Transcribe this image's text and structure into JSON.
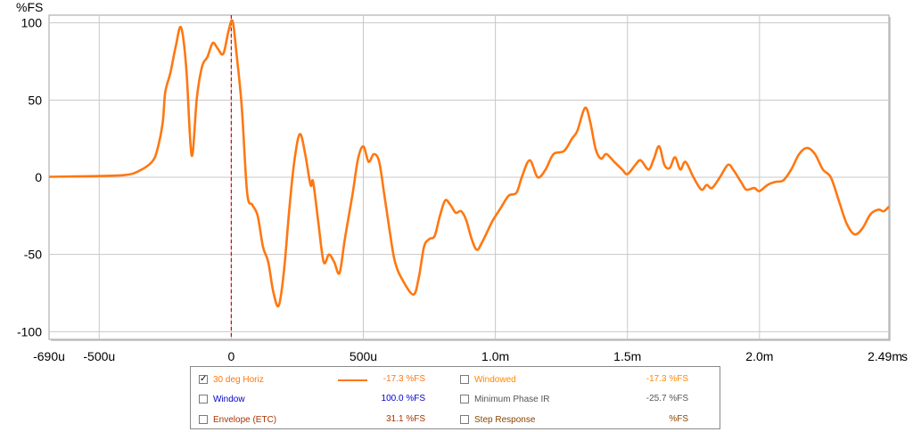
{
  "chart_data": {
    "type": "line",
    "title": "",
    "xlabel": "",
    "ylabel": "%FS",
    "x_unit": "s",
    "xlim": [
      -0.00069,
      0.00249
    ],
    "ylim": [
      -105,
      105
    ],
    "grid": true,
    "x_ticks": [
      {
        "value": -0.00069,
        "label": "-690u"
      },
      {
        "value": -0.0005,
        "label": "-500u"
      },
      {
        "value": 0,
        "label": "0"
      },
      {
        "value": 0.0005,
        "label": "500u"
      },
      {
        "value": 0.001,
        "label": "1.0m"
      },
      {
        "value": 0.0015,
        "label": "1.5m"
      },
      {
        "value": 0.002,
        "label": "2.0m"
      },
      {
        "value": 0.00249,
        "label": "2.49m"
      }
    ],
    "y_ticks": [
      100,
      50,
      0,
      -50,
      -100
    ],
    "marker_x": 0,
    "series": [
      {
        "name": "30 deg Horiz",
        "color": "#ff7711",
        "points": [
          [
            -0.00069,
            0.3
          ],
          [
            -0.0006,
            0.5
          ],
          [
            -0.0005,
            0.8
          ],
          [
            -0.0004,
            1.5
          ],
          [
            -0.00035,
            4
          ],
          [
            -0.0003,
            10
          ],
          [
            -0.00028,
            18
          ],
          [
            -0.00026,
            35
          ],
          [
            -0.00025,
            55
          ],
          [
            -0.00023,
            68
          ],
          [
            -0.00021,
            85
          ],
          [
            -0.00019,
            97
          ],
          [
            -0.00017,
            70
          ],
          [
            -0.00015,
            14
          ],
          [
            -0.00013,
            52
          ],
          [
            -0.00011,
            72
          ],
          [
            -9e-05,
            78
          ],
          [
            -7e-05,
            87
          ],
          [
            -5e-05,
            83
          ],
          [
            -3e-05,
            80
          ],
          [
            -1e-05,
            95
          ],
          [
            5e-06,
            101
          ],
          [
            2e-05,
            80
          ],
          [
            4e-05,
            45
          ],
          [
            6e-05,
            -10
          ],
          [
            8e-05,
            -18
          ],
          [
            0.0001,
            -25
          ],
          [
            0.00012,
            -45
          ],
          [
            0.00014,
            -55
          ],
          [
            0.00016,
            -75
          ],
          [
            0.00018,
            -83
          ],
          [
            0.0002,
            -60
          ],
          [
            0.00022,
            -20
          ],
          [
            0.00024,
            12
          ],
          [
            0.00026,
            28
          ],
          [
            0.00028,
            15
          ],
          [
            0.0003,
            -5
          ],
          [
            0.00031,
            -3
          ],
          [
            0.00033,
            -30
          ],
          [
            0.00035,
            -55
          ],
          [
            0.00037,
            -50
          ],
          [
            0.00039,
            -55
          ],
          [
            0.00041,
            -62
          ],
          [
            0.00043,
            -40
          ],
          [
            0.00046,
            -10
          ],
          [
            0.00048,
            12
          ],
          [
            0.0005,
            20
          ],
          [
            0.00052,
            10
          ],
          [
            0.00054,
            15
          ],
          [
            0.00056,
            10
          ],
          [
            0.00058,
            -12
          ],
          [
            0.0006,
            -35
          ],
          [
            0.00062,
            -55
          ],
          [
            0.00065,
            -67
          ],
          [
            0.00069,
            -76
          ],
          [
            0.00071,
            -65
          ],
          [
            0.00073,
            -45
          ],
          [
            0.00075,
            -40
          ],
          [
            0.00077,
            -38
          ],
          [
            0.00079,
            -25
          ],
          [
            0.00081,
            -15
          ],
          [
            0.00083,
            -18
          ],
          [
            0.00085,
            -23
          ],
          [
            0.00087,
            -22
          ],
          [
            0.00089,
            -28
          ],
          [
            0.00091,
            -40
          ],
          [
            0.00093,
            -47
          ],
          [
            0.00095,
            -42
          ],
          [
            0.00097,
            -35
          ],
          [
            0.00099,
            -28
          ],
          [
            0.00102,
            -20
          ],
          [
            0.00105,
            -12
          ],
          [
            0.00108,
            -10
          ],
          [
            0.0011,
            0
          ],
          [
            0.00113,
            11
          ],
          [
            0.00116,
            0
          ],
          [
            0.00119,
            5
          ],
          [
            0.00122,
            15
          ],
          [
            0.00126,
            17
          ],
          [
            0.00129,
            25
          ],
          [
            0.00131,
            30
          ],
          [
            0.00134,
            45
          ],
          [
            0.00136,
            35
          ],
          [
            0.00138,
            18
          ],
          [
            0.0014,
            12
          ],
          [
            0.00142,
            15
          ],
          [
            0.00145,
            10
          ],
          [
            0.00148,
            5
          ],
          [
            0.0015,
            2
          ],
          [
            0.00153,
            8
          ],
          [
            0.00155,
            11
          ],
          [
            0.00158,
            5
          ],
          [
            0.0016,
            12
          ],
          [
            0.00162,
            20
          ],
          [
            0.00164,
            8
          ],
          [
            0.00166,
            6
          ],
          [
            0.00168,
            13
          ],
          [
            0.0017,
            5
          ],
          [
            0.00172,
            10
          ],
          [
            0.00175,
            0
          ],
          [
            0.00178,
            -8
          ],
          [
            0.0018,
            -5
          ],
          [
            0.00182,
            -7
          ],
          [
            0.00185,
            0
          ],
          [
            0.00188,
            8
          ],
          [
            0.0019,
            5
          ],
          [
            0.00193,
            -3
          ],
          [
            0.00195,
            -8
          ],
          [
            0.00198,
            -7
          ],
          [
            0.002,
            -9
          ],
          [
            0.00203,
            -5
          ],
          [
            0.00206,
            -3
          ],
          [
            0.00209,
            -2
          ],
          [
            0.00212,
            5
          ],
          [
            0.00215,
            15
          ],
          [
            0.00218,
            19
          ],
          [
            0.00221,
            15
          ],
          [
            0.00224,
            5
          ],
          [
            0.00227,
            0
          ],
          [
            0.0023,
            -15
          ],
          [
            0.00233,
            -30
          ],
          [
            0.00236,
            -37
          ],
          [
            0.00239,
            -33
          ],
          [
            0.00242,
            -24
          ],
          [
            0.00245,
            -21
          ],
          [
            0.00247,
            -22
          ],
          [
            0.00249,
            -19
          ]
        ]
      }
    ]
  },
  "legend": {
    "items": [
      {
        "label": "30 deg Horiz",
        "value": "-17.3 %FS",
        "checked": true,
        "color": "#ff7711",
        "show_swatch": true
      },
      {
        "label": "Window",
        "value": "100.0 %FS",
        "checked": false,
        "color": "#0000cc",
        "show_swatch": false
      },
      {
        "label": "Envelope (ETC)",
        "value": "31.1 %FS",
        "checked": false,
        "color": "#aa3300",
        "show_swatch": false
      },
      {
        "label": "Windowed",
        "value": "-17.3 %FS",
        "checked": false,
        "color": "#ff8800",
        "show_swatch": false
      },
      {
        "label": "Minimum Phase IR",
        "value": "-25.7 %FS",
        "checked": false,
        "color": "#555555",
        "show_swatch": false
      },
      {
        "label": "Step Response",
        "value": "%FS",
        "checked": false,
        "color": "#884400",
        "show_swatch": false
      }
    ]
  }
}
